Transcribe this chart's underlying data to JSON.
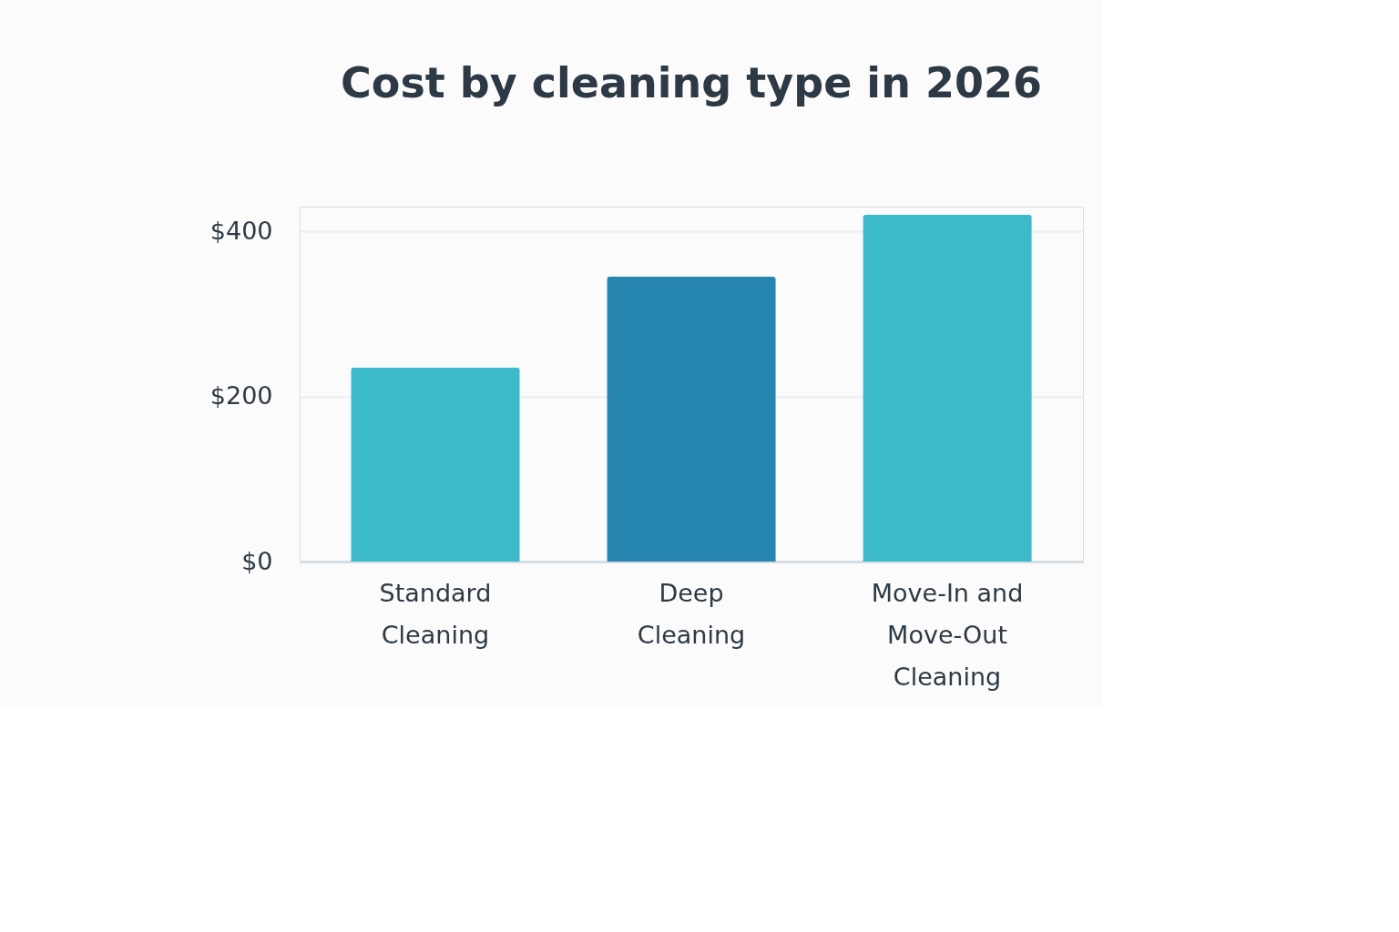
{
  "chart_data": {
    "type": "bar",
    "title": "Cost by cleaning type in 2026",
    "categories": [
      "Standard Cleaning",
      "Deep Cleaning",
      "Move-In and Move-Out Cleaning"
    ],
    "values": [
      235,
      345,
      420
    ],
    "colors": [
      "#3dbac9",
      "#2585ae",
      "#3dbac9"
    ],
    "ylim": [
      0,
      430
    ],
    "yticks": [
      {
        "value": 0,
        "label": "$0"
      },
      {
        "value": 200,
        "label": "$200"
      },
      {
        "value": 400,
        "label": "$400"
      }
    ],
    "grid": "y"
  }
}
